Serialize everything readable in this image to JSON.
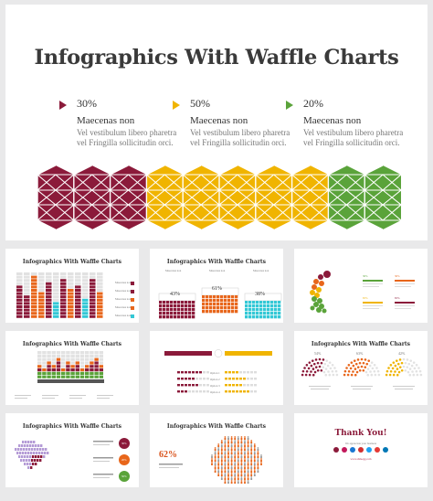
{
  "hero": {
    "title": "Infographics With Waffle Charts",
    "stats": [
      {
        "pct": "30%",
        "heading": "Maecenas non",
        "line1": "Vel vestibulum libero pharetra",
        "line2": "vel Fringilla sollicitudin orci.",
        "color": "#8b1a3a"
      },
      {
        "pct": "50%",
        "heading": "Maecenas non",
        "line1": "Vel vestibulum libero pharetra",
        "line2": "vel Fringilla sollicitudin orci.",
        "color": "#f0b400"
      },
      {
        "pct": "20%",
        "heading": "Maecenas non",
        "line1": "Vel vestibulum libero pharetra",
        "line2": "vel Fringilla sollicitudin orci.",
        "color": "#5aa33a"
      }
    ]
  },
  "thumbs": {
    "t1": {
      "title": "Infographics With Waffle Charts",
      "legend": [
        "Maecenas non",
        "Maecenas non",
        "Maecenas non",
        "Maecenas non",
        "Maecenas non"
      ]
    },
    "t2": {
      "title": "Infographics With Waffle Charts",
      "pcts": [
        "43%",
        "61%",
        "38%"
      ],
      "heads": [
        "Maecenas non",
        "Maecenas non",
        "Maecenas non"
      ]
    },
    "t3": {
      "pcts": [
        "30%",
        "30%",
        "65%",
        "65%"
      ]
    },
    "t4": {
      "title": "Infographics With Waffle Charts"
    },
    "t5": {
      "labels": [
        "Option 1",
        "Option 2",
        "Option 3",
        "Option 4"
      ]
    },
    "t6": {
      "title": "Infographics With Waffle Charts",
      "pcts": [
        "54%",
        "63%",
        "42%"
      ]
    },
    "t7": {
      "title": "Infographics With Waffle Charts",
      "pcts": [
        "30%",
        "20%",
        "50%"
      ]
    },
    "t8": {
      "title": "Infographics With Waffle Charts",
      "pct": "62%"
    },
    "t9": {
      "title": "Thank You!",
      "sub": "We appreciate your business",
      "link": "www.slideegg.com"
    }
  },
  "colors": {
    "maroon": "#8b1a3a",
    "yellow": "#f0b400",
    "green": "#5aa33a",
    "orange": "#e8661b",
    "teal": "#33c8d6"
  }
}
